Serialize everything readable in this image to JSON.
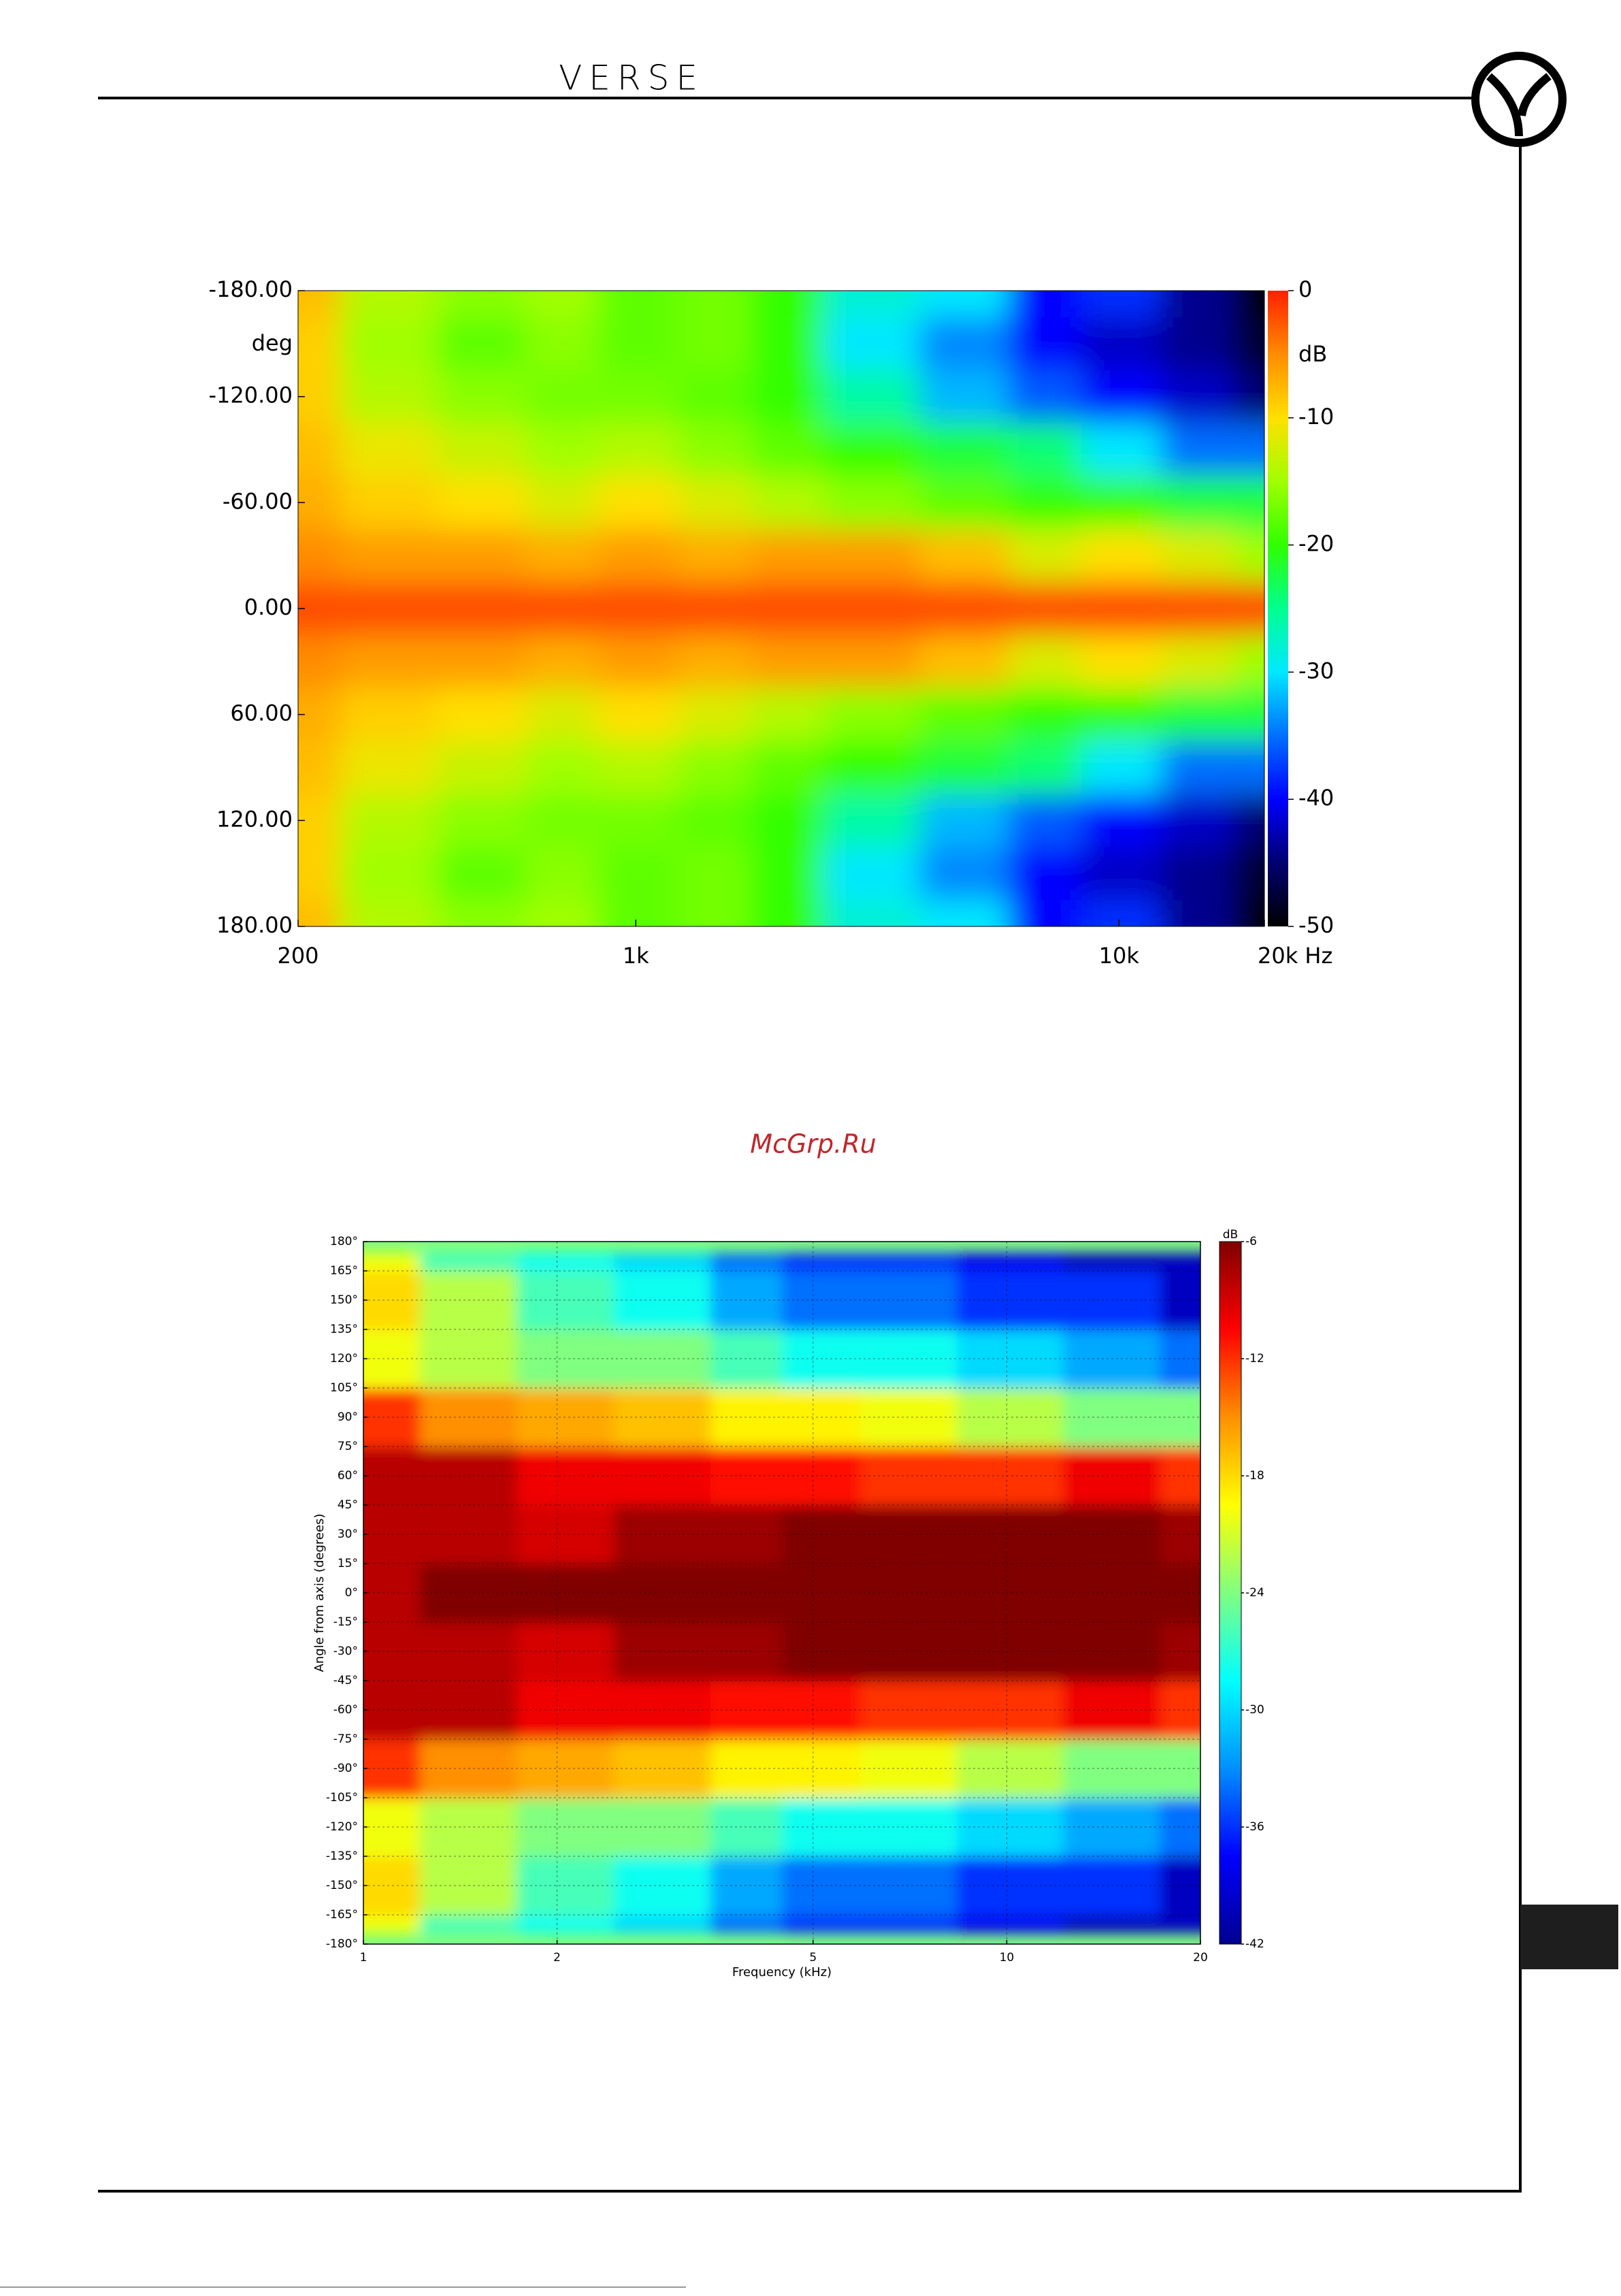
{
  "header": {
    "brand": "VERSE"
  },
  "watermark": "McGrp.Ru",
  "chart_data": [
    {
      "type": "heatmap",
      "x": [
        200,
        300,
        500,
        700,
        1000,
        1500,
        2000,
        3000,
        5000,
        7000,
        10000,
        15000,
        20000
      ],
      "y": [
        -180,
        -150,
        -120,
        -90,
        -60,
        -30,
        0,
        30,
        60,
        90,
        120,
        150,
        180
      ],
      "z": [
        [
          -8,
          -14,
          -16,
          -15,
          -18,
          -17,
          -20,
          -28,
          -30,
          -40,
          -38,
          -44,
          -50
        ],
        [
          -9,
          -15,
          -18,
          -16,
          -18,
          -17,
          -20,
          -30,
          -34,
          -40,
          -42,
          -44,
          -48
        ],
        [
          -9,
          -14,
          -16,
          -17,
          -17,
          -18,
          -20,
          -26,
          -32,
          -36,
          -40,
          -42,
          -45
        ],
        [
          -8,
          -11,
          -13,
          -15,
          -14,
          -16,
          -18,
          -20,
          -22,
          -24,
          -30,
          -35,
          -35
        ],
        [
          -7,
          -9,
          -10,
          -12,
          -10,
          -12,
          -14,
          -16,
          -18,
          -20,
          -20,
          -22,
          -22
        ],
        [
          -5,
          -6,
          -6,
          -7,
          -6,
          -7,
          -6,
          -6,
          -8,
          -12,
          -10,
          -12,
          -15
        ],
        [
          -2,
          -2,
          -2,
          -2,
          -2,
          -2,
          -2,
          -2,
          -2,
          -2,
          -2,
          -2,
          -2
        ],
        [
          -5,
          -6,
          -6,
          -7,
          -6,
          -7,
          -6,
          -6,
          -8,
          -12,
          -10,
          -12,
          -15
        ],
        [
          -7,
          -9,
          -10,
          -12,
          -10,
          -12,
          -14,
          -16,
          -18,
          -20,
          -20,
          -22,
          -22
        ],
        [
          -8,
          -11,
          -13,
          -15,
          -14,
          -16,
          -18,
          -20,
          -22,
          -24,
          -30,
          -35,
          -35
        ],
        [
          -9,
          -14,
          -16,
          -17,
          -17,
          -18,
          -20,
          -26,
          -32,
          -36,
          -40,
          -42,
          -45
        ],
        [
          -9,
          -15,
          -18,
          -16,
          -18,
          -17,
          -20,
          -30,
          -34,
          -40,
          -42,
          -44,
          -48
        ],
        [
          -8,
          -14,
          -16,
          -15,
          -18,
          -17,
          -20,
          -28,
          -30,
          -40,
          -38,
          -44,
          -50
        ]
      ],
      "x_log": true,
      "xlim": [
        200,
        20000
      ],
      "xticks": [
        200,
        {
          "value": 1000,
          "label": "1k"
        },
        {
          "value": 10000,
          "label": "10k"
        },
        {
          "value": 20000,
          "label": "20k Hz"
        }
      ],
      "ylim": [
        180,
        -180
      ],
      "yticks": [
        {
          "value": -180,
          "label": "-180.00"
        },
        {
          "value": -120,
          "label": "-120.00"
        },
        {
          "value": -60,
          "label": "-60.00"
        },
        {
          "value": 0,
          "label": "0.00"
        },
        {
          "value": 60,
          "label": "60.00"
        },
        {
          "value": 120,
          "label": "120.00"
        },
        {
          "value": 180,
          "label": "180.00"
        }
      ],
      "y_unit": "deg",
      "clim": [
        -50,
        0
      ],
      "cticks": [
        0,
        -10,
        -20,
        -30,
        -40,
        -50
      ],
      "colorbar_label": "dB",
      "colorscale": [
        "#000000",
        "#000070",
        "#0000ff",
        "#0070ff",
        "#00e8ff",
        "#00ff90",
        "#30ff00",
        "#a0ff00",
        "#ffe000",
        "#ff8c00",
        "#ff2000"
      ],
      "grid": false
    },
    {
      "type": "heatmap",
      "x": [
        1,
        1.5,
        2,
        3,
        4,
        5,
        7,
        10,
        15,
        20
      ],
      "y": [
        -180,
        -150,
        -120,
        -90,
        -60,
        -30,
        0,
        30,
        60,
        90,
        120,
        150,
        180
      ],
      "z": [
        [
          -20,
          -26,
          -28,
          -30,
          -34,
          -36,
          -36,
          -38,
          -40,
          -40
        ],
        [
          -18,
          -22,
          -26,
          -28,
          -32,
          -34,
          -34,
          -36,
          -36,
          -40
        ],
        [
          -20,
          -22,
          -24,
          -24,
          -26,
          -28,
          -28,
          -30,
          -32,
          -34
        ],
        [
          -12,
          -15,
          -16,
          -17,
          -19,
          -19,
          -20,
          -22,
          -24,
          -24
        ],
        [
          -8,
          -8,
          -10,
          -10,
          -11,
          -11,
          -12,
          -12,
          -10,
          -12
        ],
        [
          -8,
          -8,
          -9,
          -7,
          -7,
          -6,
          -6,
          -6,
          -6,
          -7
        ],
        [
          -8,
          -6,
          -6,
          -6,
          -6,
          -6,
          -6,
          -6,
          -6,
          -6
        ],
        [
          -8,
          -8,
          -9,
          -7,
          -7,
          -6,
          -6,
          -6,
          -6,
          -7
        ],
        [
          -8,
          -8,
          -10,
          -10,
          -11,
          -11,
          -12,
          -12,
          -10,
          -12
        ],
        [
          -12,
          -15,
          -16,
          -17,
          -19,
          -19,
          -20,
          -22,
          -24,
          -24
        ],
        [
          -20,
          -22,
          -24,
          -24,
          -26,
          -28,
          -28,
          -30,
          -32,
          -34
        ],
        [
          -18,
          -22,
          -26,
          -28,
          -32,
          -34,
          -34,
          -36,
          -36,
          -40
        ],
        [
          -20,
          -26,
          -28,
          -30,
          -34,
          -36,
          -36,
          -38,
          -40,
          -40
        ]
      ],
      "x_log": true,
      "xlim": [
        1,
        20
      ],
      "xticks": [
        1,
        2,
        5,
        10,
        20
      ],
      "xlabel": "Frequency (kHz)",
      "ylim": [
        -180,
        180
      ],
      "yticks": [
        {
          "value": 180,
          "label": "180°"
        },
        {
          "value": 165,
          "label": "165°"
        },
        {
          "value": 150,
          "label": "150°"
        },
        {
          "value": 135,
          "label": "135°"
        },
        {
          "value": 120,
          "label": "120°"
        },
        {
          "value": 105,
          "label": "105°"
        },
        {
          "value": 90,
          "label": "90°"
        },
        {
          "value": 75,
          "label": "75°"
        },
        {
          "value": 60,
          "label": "60°"
        },
        {
          "value": 45,
          "label": "45°"
        },
        {
          "value": 30,
          "label": "30°"
        },
        {
          "value": 15,
          "label": "15°"
        },
        {
          "value": 0,
          "label": "0°"
        },
        {
          "value": -15,
          "label": "-15°"
        },
        {
          "value": -30,
          "label": "-30°"
        },
        {
          "value": -45,
          "label": "-45°"
        },
        {
          "value": -60,
          "label": "-60°"
        },
        {
          "value": -75,
          "label": "-75°"
        },
        {
          "value": -90,
          "label": "-90°"
        },
        {
          "value": -105,
          "label": "-105°"
        },
        {
          "value": -120,
          "label": "-120°"
        },
        {
          "value": -135,
          "label": "-135°"
        },
        {
          "value": -150,
          "label": "-150°"
        },
        {
          "value": -165,
          "label": "-165°"
        },
        {
          "value": -180,
          "label": "-180°"
        }
      ],
      "ylabel": "Angle from axis (degrees)",
      "clim": [
        -42,
        -6
      ],
      "cticks": [
        -6,
        -12,
        -18,
        -24,
        -30,
        -36,
        -42
      ],
      "colorbar_label": "dB",
      "colorscale": [
        "#000090",
        "#0000ff",
        "#0090ff",
        "#00ffff",
        "#80ff80",
        "#ffff00",
        "#ff9000",
        "#ff0000",
        "#800000"
      ],
      "grid": true
    }
  ]
}
